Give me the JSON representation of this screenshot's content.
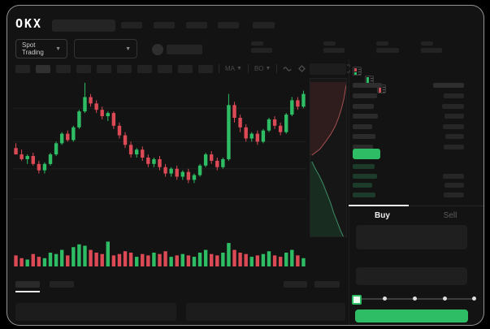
{
  "topbar": {
    "logo": "OKX"
  },
  "pair_bar": {
    "market_type": "Spot Trading"
  },
  "toolbar": {
    "ind1": "MA",
    "ind2": "BO"
  },
  "trade": {
    "buy_tab": "Buy",
    "sell_tab": "Sell"
  },
  "colors": {
    "up_green": "#2EBD64",
    "down_red": "#DC4A56",
    "buy_button": "#2EBD64",
    "last_price_bar": "#2EBD64",
    "card_bg": "#131313",
    "placeholder": "#232323"
  },
  "orderbook": {
    "header": {
      "left_w": 36,
      "right_w": 38
    },
    "asks": {
      "left_w": [
        30,
        26,
        31,
        24,
        28,
        25
      ],
      "right_w": [
        25,
        27,
        24,
        26,
        23,
        25
      ]
    },
    "bids": {
      "left_w": [
        27,
        30,
        24,
        28
      ],
      "right_w": [
        0,
        26,
        24,
        25
      ]
    }
  },
  "chart_data": {
    "type": "candlestick",
    "title": "",
    "xlabel": "",
    "ylabel": "",
    "price_scale": [
      0,
      100
    ],
    "grid": true,
    "gridlines_p": [
      81,
      60,
      43,
      24
    ],
    "colors": {
      "up": "#2EBD64",
      "down": "#DC4A56"
    },
    "candles": [
      [
        56,
        59,
        52,
        52
      ],
      [
        52,
        55,
        48,
        49
      ],
      [
        49,
        52,
        46,
        51
      ],
      [
        51,
        53,
        45,
        46
      ],
      [
        46,
        48,
        40,
        42
      ],
      [
        42,
        47,
        40,
        46
      ],
      [
        46,
        53,
        45,
        52
      ],
      [
        52,
        60,
        51,
        59
      ],
      [
        59,
        66,
        58,
        65
      ],
      [
        65,
        67,
        60,
        61
      ],
      [
        61,
        70,
        60,
        69
      ],
      [
        69,
        80,
        68,
        79
      ],
      [
        79,
        97,
        78,
        88
      ],
      [
        88,
        90,
        82,
        84
      ],
      [
        84,
        86,
        78,
        80
      ],
      [
        80,
        82,
        74,
        76
      ],
      [
        76,
        79,
        73,
        78
      ],
      [
        78,
        79,
        68,
        70
      ],
      [
        70,
        72,
        62,
        64
      ],
      [
        64,
        66,
        56,
        58
      ],
      [
        58,
        60,
        50,
        52
      ],
      [
        52,
        56,
        50,
        55
      ],
      [
        55,
        57,
        48,
        50
      ],
      [
        50,
        52,
        44,
        46
      ],
      [
        46,
        50,
        44,
        49
      ],
      [
        49,
        51,
        42,
        44
      ],
      [
        44,
        46,
        38,
        40
      ],
      [
        40,
        44,
        38,
        43
      ],
      [
        43,
        45,
        36,
        38
      ],
      [
        38,
        42,
        36,
        41
      ],
      [
        41,
        43,
        34,
        36
      ],
      [
        36,
        40,
        34,
        39
      ],
      [
        39,
        46,
        38,
        45
      ],
      [
        45,
        53,
        44,
        52
      ],
      [
        52,
        54,
        46,
        48
      ],
      [
        48,
        50,
        42,
        44
      ],
      [
        44,
        50,
        43,
        49
      ],
      [
        49,
        90,
        48,
        83
      ],
      [
        83,
        85,
        72,
        75
      ],
      [
        75,
        77,
        66,
        69
      ],
      [
        69,
        71,
        60,
        62
      ],
      [
        62,
        66,
        60,
        65
      ],
      [
        65,
        67,
        58,
        60
      ],
      [
        60,
        68,
        59,
        67
      ],
      [
        67,
        75,
        66,
        74
      ],
      [
        74,
        76,
        68,
        70
      ],
      [
        70,
        72,
        64,
        66
      ],
      [
        66,
        78,
        65,
        77
      ],
      [
        77,
        88,
        76,
        86
      ],
      [
        86,
        88,
        80,
        82
      ],
      [
        82,
        92,
        81,
        90
      ]
    ],
    "volumes": [
      8,
      6,
      5,
      9,
      7,
      6,
      10,
      9,
      12,
      8,
      14,
      16,
      15,
      12,
      10,
      9,
      18,
      8,
      9,
      11,
      10,
      7,
      9,
      8,
      10,
      9,
      11,
      7,
      8,
      9,
      8,
      7,
      10,
      12,
      9,
      8,
      10,
      17,
      12,
      10,
      9,
      7,
      8,
      9,
      11,
      8,
      7,
      10,
      12,
      8,
      6
    ],
    "depth": {
      "asks_line": [
        [
          98,
          2
        ],
        [
          94,
          6
        ],
        [
          90,
          12
        ],
        [
          84,
          18
        ],
        [
          76,
          24
        ],
        [
          66,
          30
        ],
        [
          54,
          35
        ],
        [
          42,
          39
        ],
        [
          26,
          44
        ],
        [
          4,
          48
        ]
      ],
      "bids_line": [
        [
          4,
          52
        ],
        [
          12,
          56
        ],
        [
          24,
          61
        ],
        [
          34,
          66
        ],
        [
          44,
          72
        ],
        [
          54,
          78
        ],
        [
          62,
          84
        ],
        [
          72,
          90
        ],
        [
          80,
          95
        ],
        [
          88,
          99
        ]
      ]
    }
  }
}
